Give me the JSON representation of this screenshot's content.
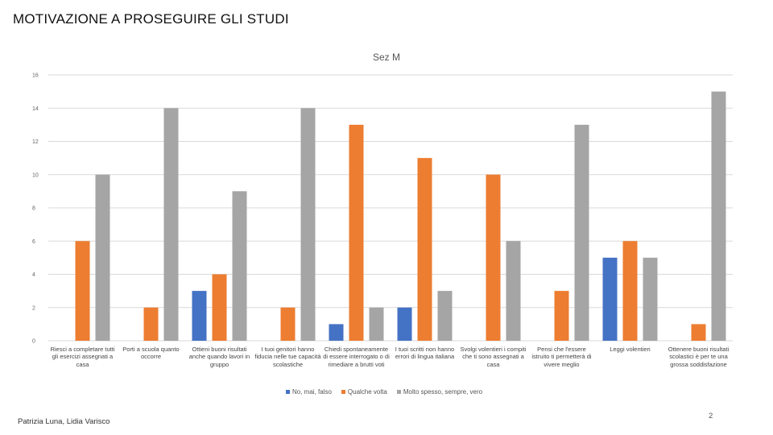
{
  "slide": {
    "title": "MOTIVAZIONE A PROSEGUIRE GLI STUDI",
    "footer": "Patrizia Luna, Lidia Varisco",
    "page_number": "2"
  },
  "colors": {
    "no": "#4472C4",
    "qualche": "#ED7D31",
    "molto": "#A5A5A5",
    "grid": "#d9d9d9"
  },
  "chart_data": {
    "type": "bar",
    "title": "Sez M",
    "ylim": [
      0,
      16
    ],
    "yticks": [
      0,
      2,
      4,
      6,
      8,
      10,
      12,
      14,
      16
    ],
    "grid": true,
    "legend_position": "bottom",
    "categories": [
      "Riesci a completare tutti gli esercizi assegnati a casa",
      "Porti a scuola quanto occorre",
      "Ottieni buoni risultati anche quando lavori in gruppo",
      "I tuoi genitori hanno fiducia nelle tue capacità scolastiche",
      "Chiedi spontaneamente di essere interrogato o di rimediare a brutti voti",
      "I tuoi scritti non hanno errori di lingua italiana",
      "Svolgi volentieri i compiti che ti sono assegnati a casa",
      "Pensi che l'essere istruito ti permetterà di vivere meglio",
      "Leggi volentieri",
      "Ottenere buoni risultati scolastici è per te una grossa soddisfazione"
    ],
    "series": [
      {
        "name": "No, mai, falso",
        "color": "#4472C4",
        "values": [
          0,
          0,
          3,
          0,
          1,
          2,
          0,
          0,
          5,
          0
        ]
      },
      {
        "name": "Qualche volta",
        "color": "#ED7D31",
        "values": [
          6,
          2,
          4,
          2,
          13,
          11,
          10,
          3,
          6,
          1
        ]
      },
      {
        "name": "Molto spesso, sempre, vero",
        "color": "#A5A5A5",
        "values": [
          10,
          14,
          9,
          14,
          2,
          3,
          6,
          13,
          5,
          15
        ]
      }
    ]
  }
}
